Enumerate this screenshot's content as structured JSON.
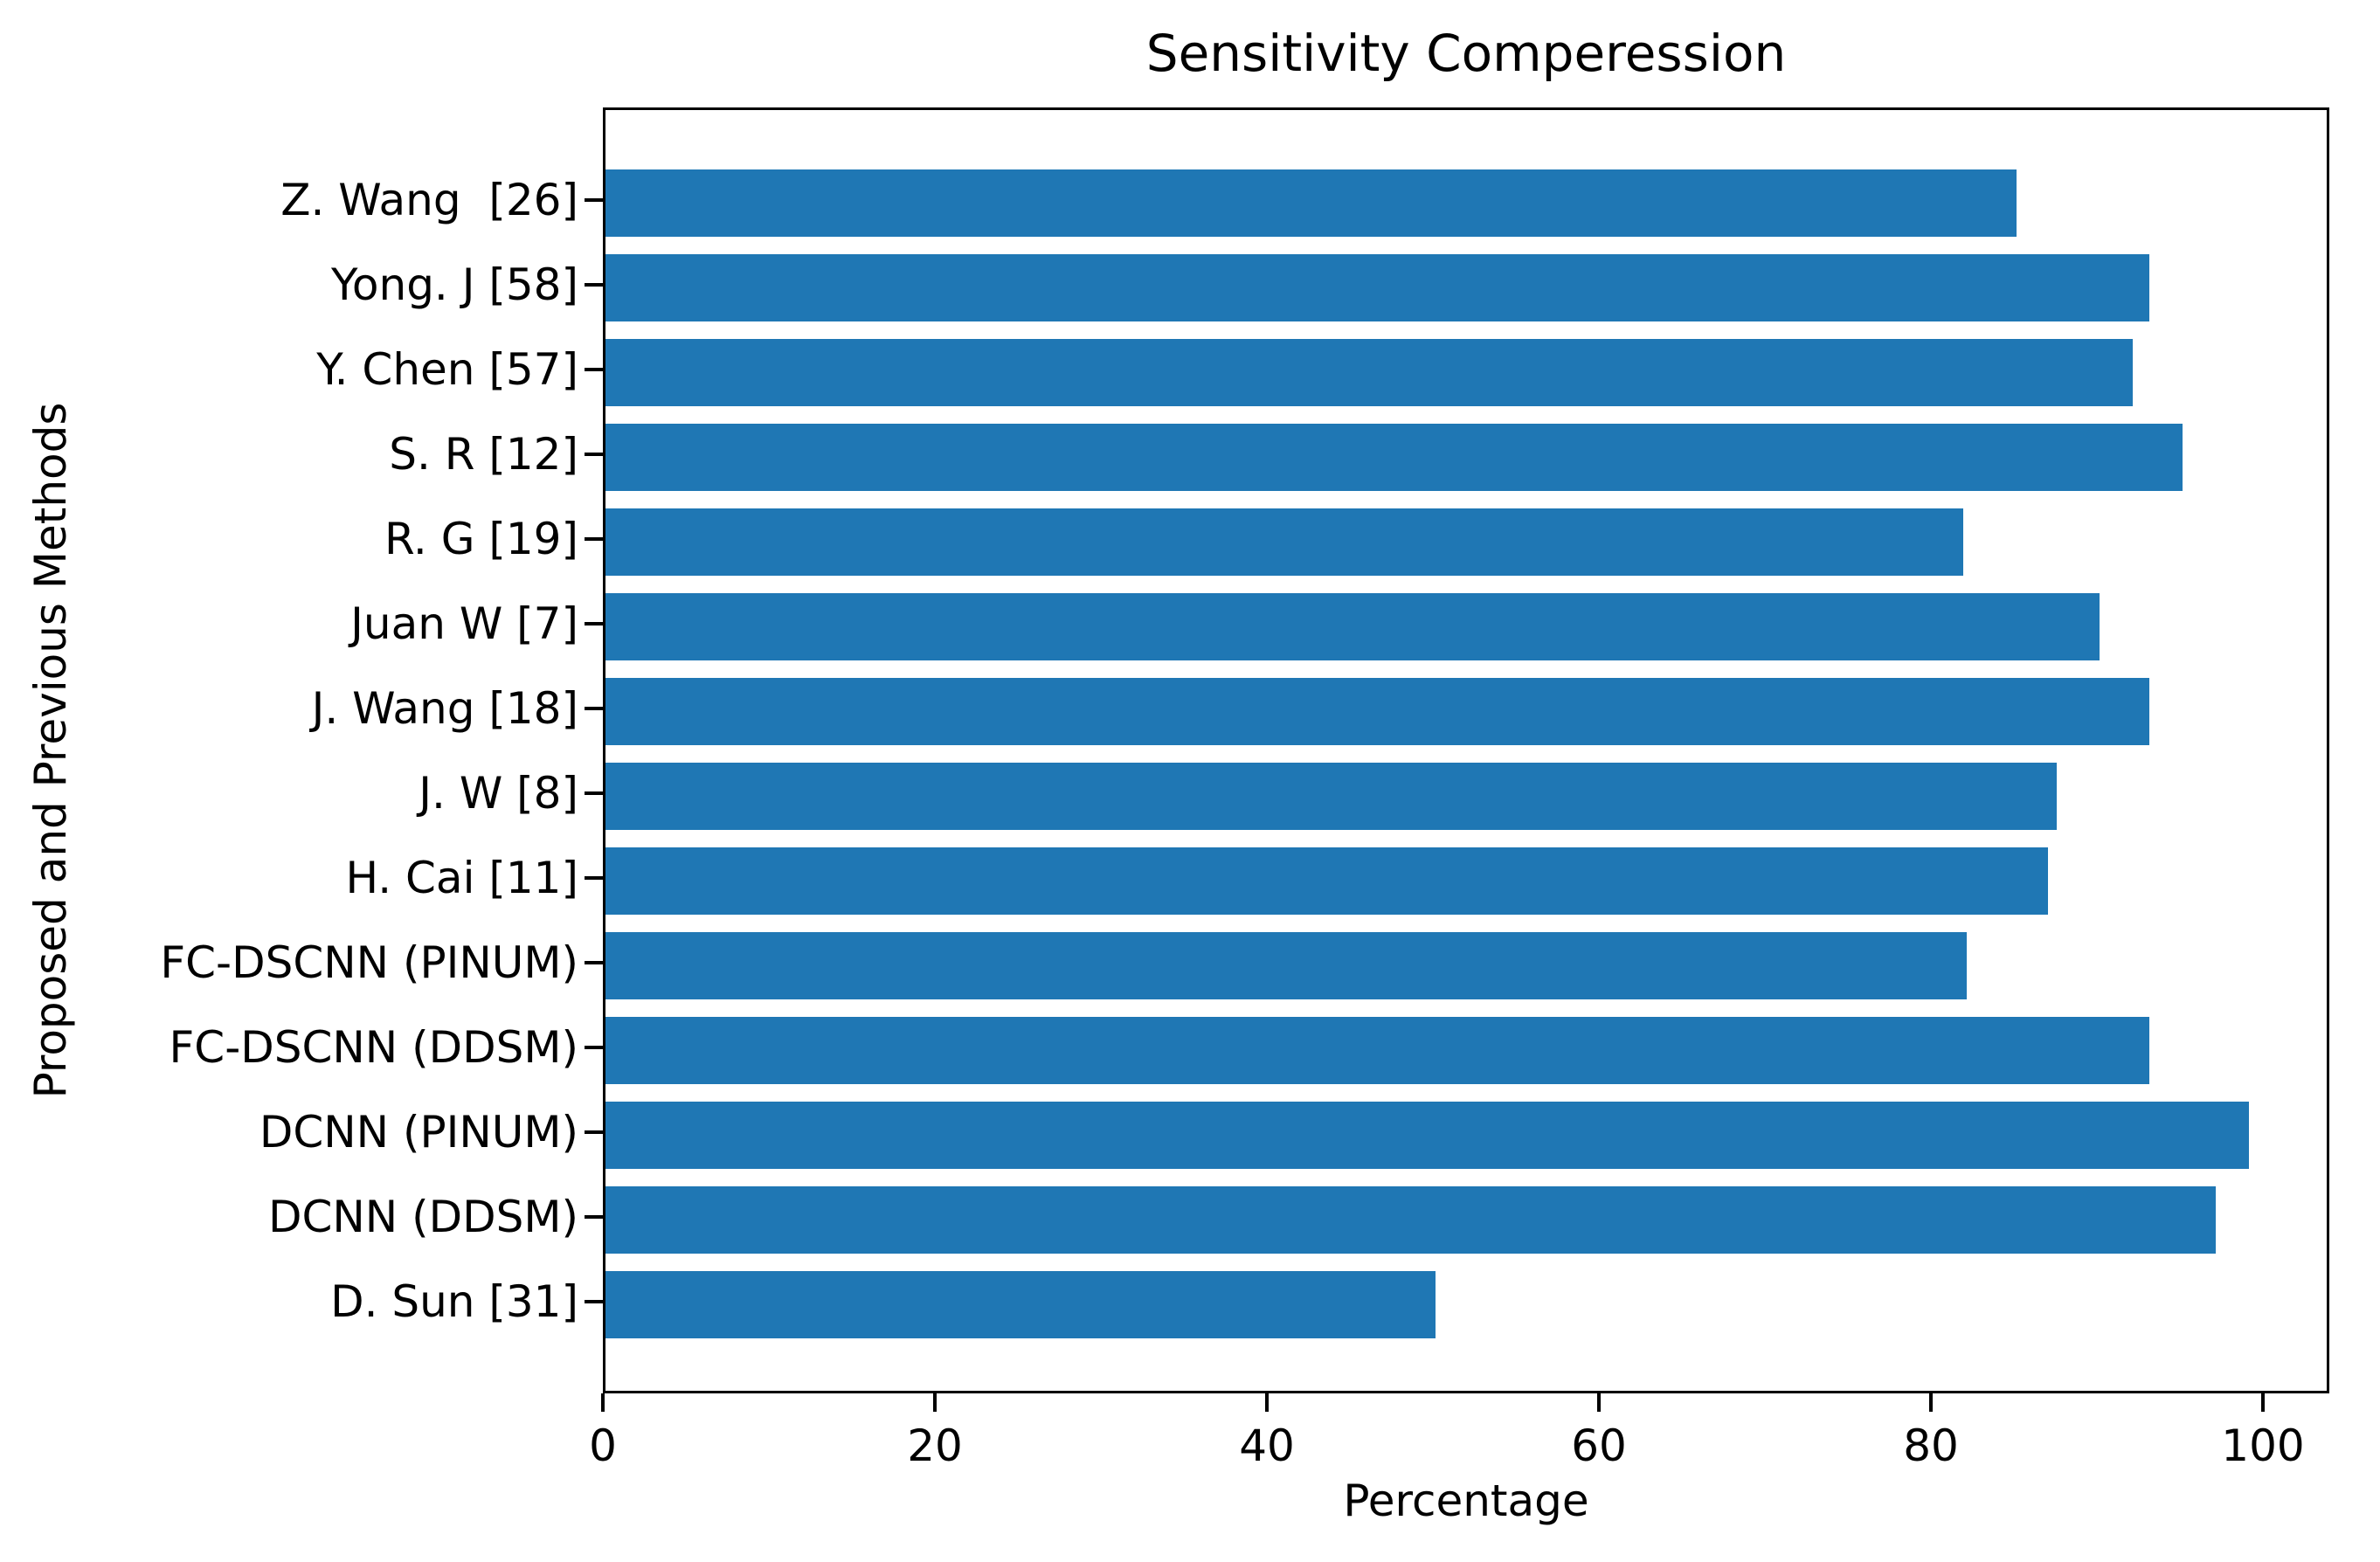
{
  "chart_data": {
    "type": "bar",
    "orientation": "horizontal",
    "title": "Sensitivity Comperession",
    "xlabel": "Percentage",
    "ylabel": "Proposed and Previous Methods",
    "categories": [
      "Z. Wang  [26]",
      "Yong. J [58]",
      "Y. Chen [57]",
      "S. R [12]",
      "R. G [19]",
      "Juan W [7]",
      "J. Wang [18]",
      "J. W [8]",
      "H. Cai [11]",
      "FC-DSCNN (PINUM)",
      "FC-DSCNN (DDSM)",
      "DCNN (PINUM)",
      "DCNN (DDSM)",
      "D. Sun [31]"
    ],
    "values": [
      85,
      93,
      92,
      95,
      81.8,
      90,
      93,
      87.4,
      86.9,
      82,
      93,
      99,
      97,
      50
    ],
    "xticks": [
      0,
      20,
      40,
      60,
      80,
      100
    ],
    "xlim": [
      0,
      104
    ],
    "grid": false,
    "legend": null,
    "bar_color": "#1f77b4",
    "axis_color": "#000000"
  }
}
